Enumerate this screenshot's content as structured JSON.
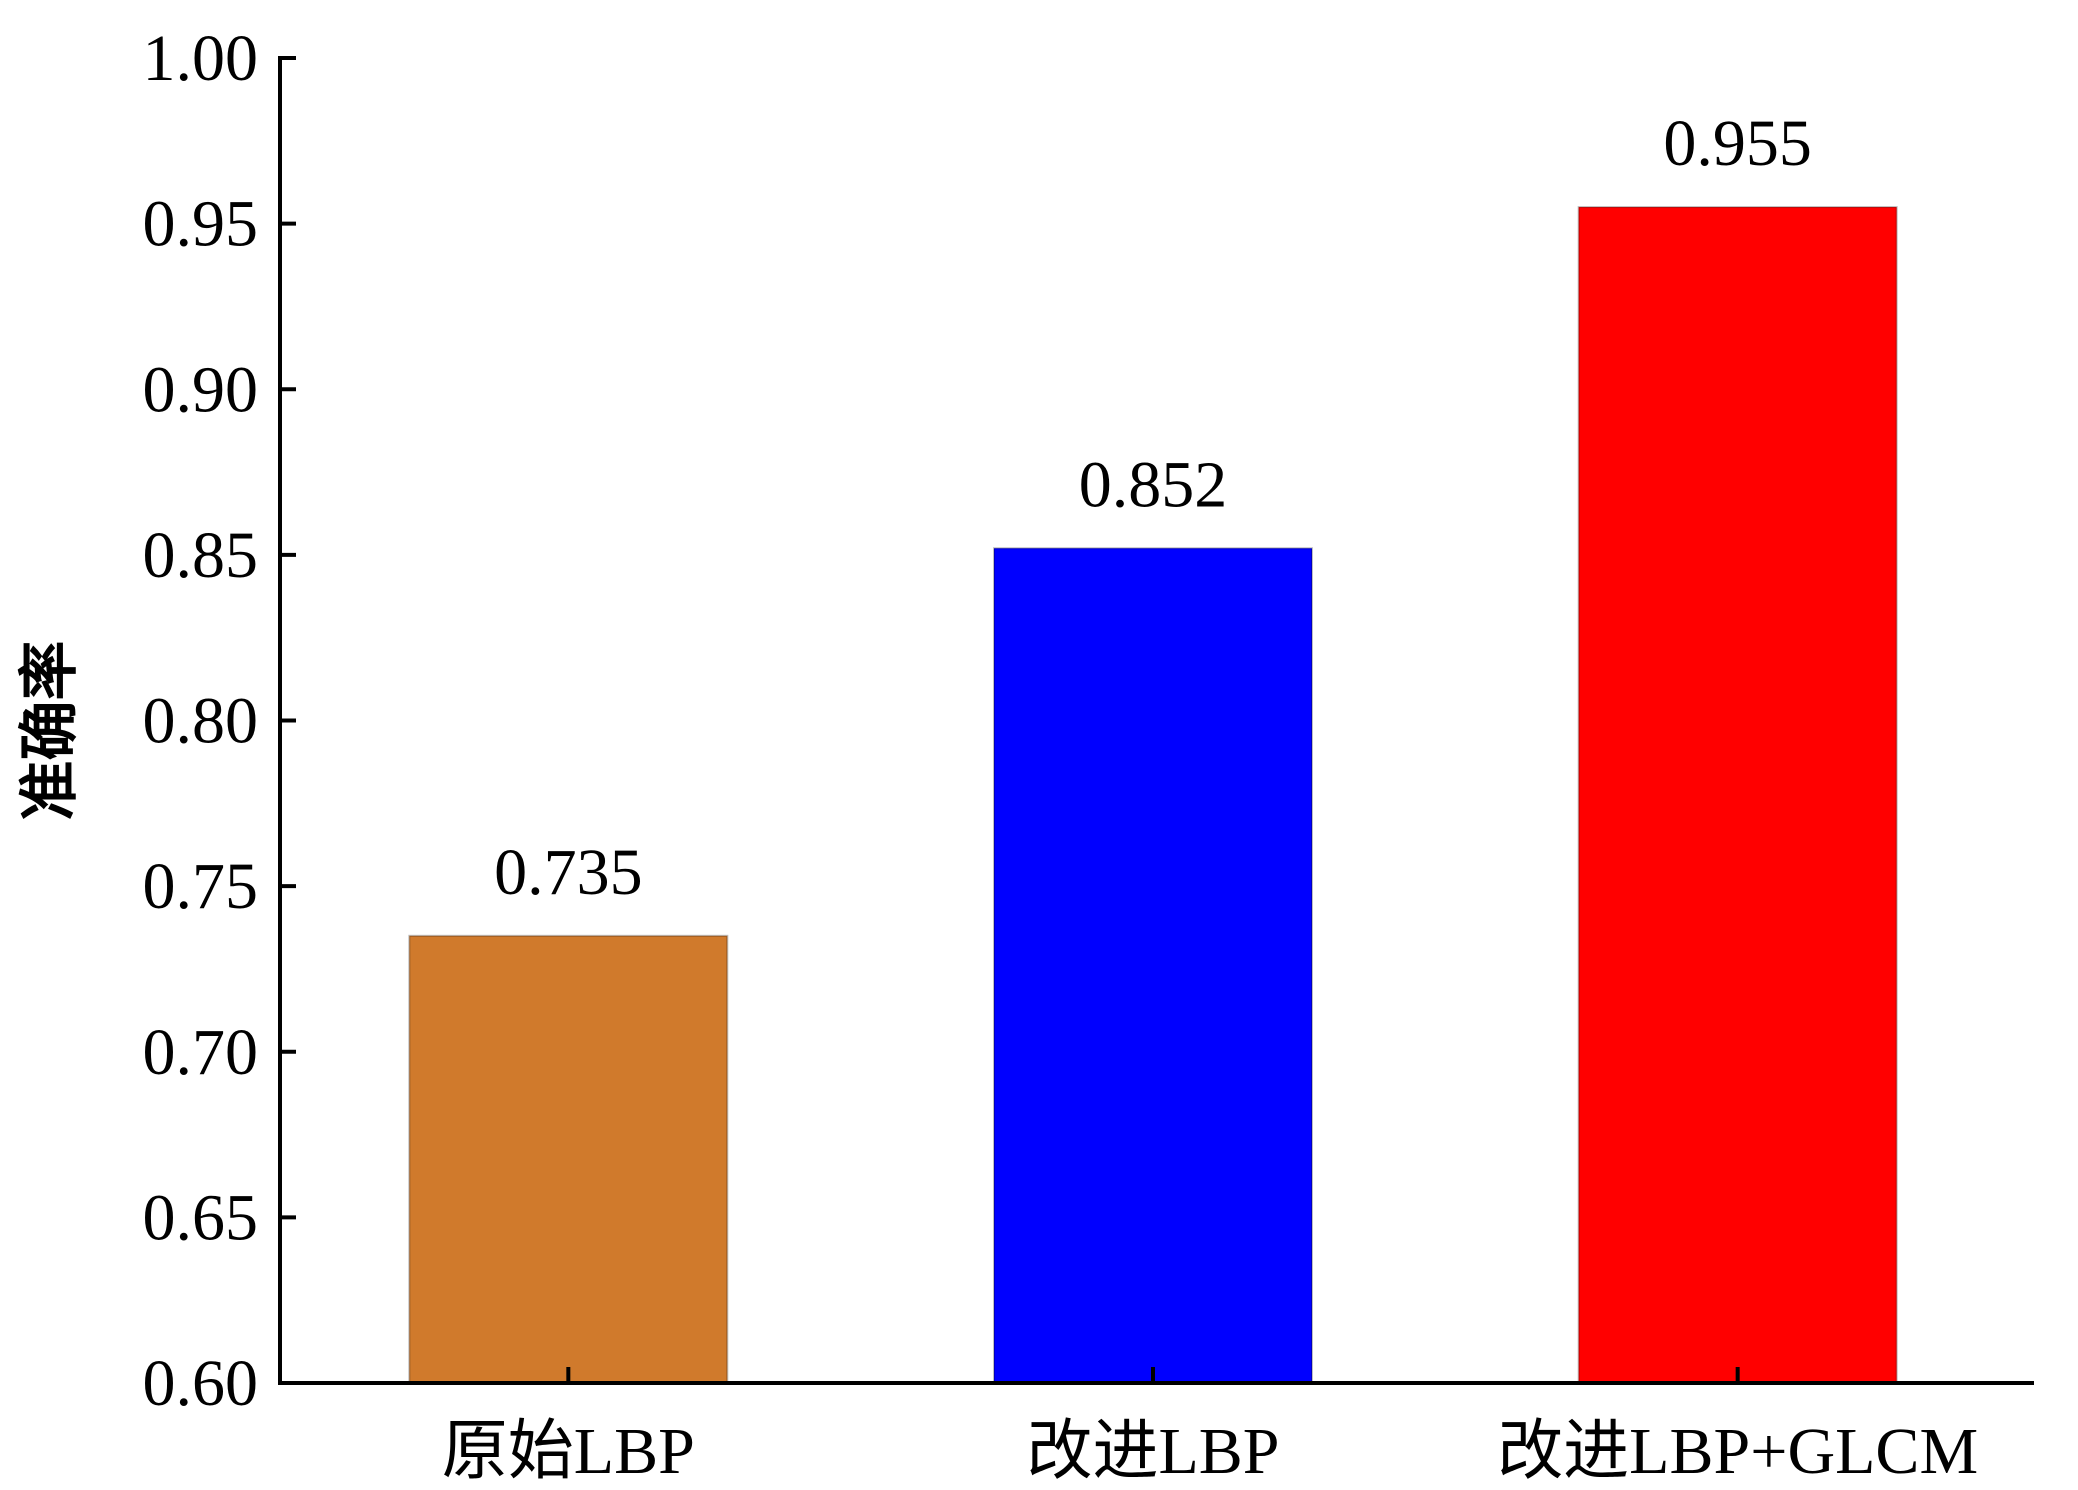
{
  "chart_data": {
    "type": "bar",
    "title": "",
    "xlabel": "",
    "ylabel": "准确率",
    "ylim": [
      0.6,
      1.0
    ],
    "yticks": [
      "0.60",
      "0.65",
      "0.70",
      "0.75",
      "0.80",
      "0.85",
      "0.90",
      "0.95",
      "1.00"
    ],
    "categories": [
      "原始LBP",
      "改进LBP",
      "改进LBP+GLCM"
    ],
    "values": [
      0.735,
      0.852,
      0.955
    ],
    "value_labels": [
      "0.735",
      "0.852",
      "0.955"
    ],
    "colors": [
      "#d07a2c",
      "#0000ff",
      "#ff0000"
    ],
    "grid": false,
    "legend": "none"
  }
}
